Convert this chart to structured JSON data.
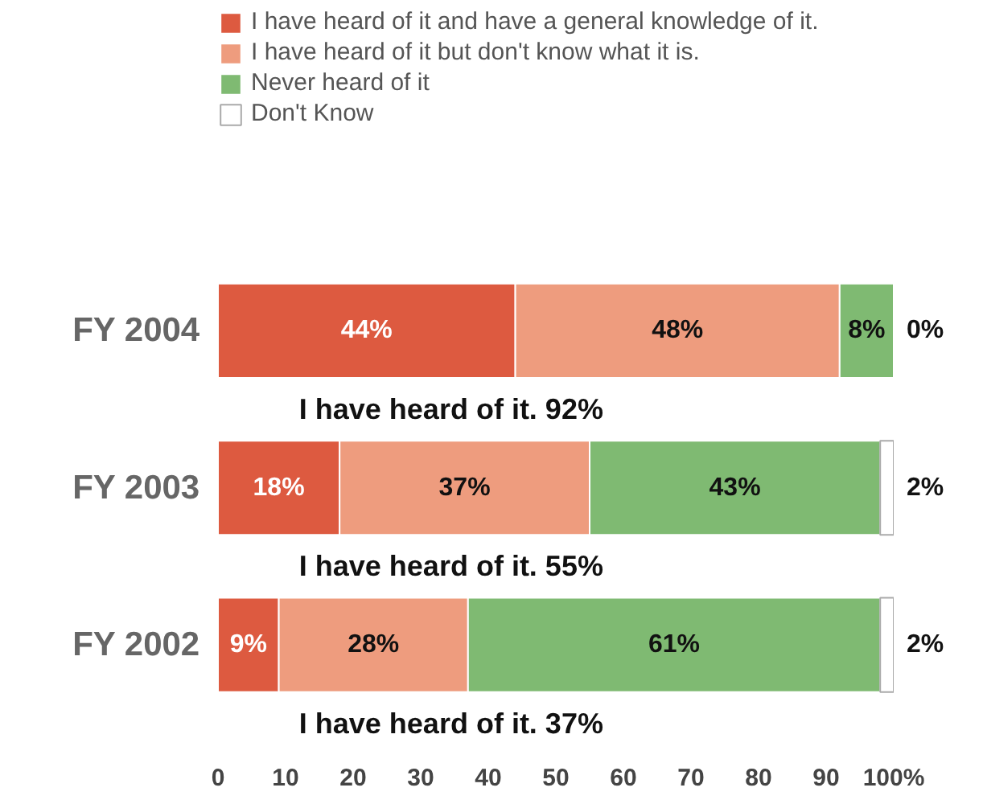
{
  "chart_data": {
    "type": "bar",
    "orientation": "horizontal",
    "stacked": true,
    "categories": [
      "FY 2004",
      "FY 2003",
      "FY 2002"
    ],
    "series": [
      {
        "name": "I have heard of it and have a general knowledge of it.",
        "color": "#dd5a40",
        "values": [
          44,
          18,
          9
        ],
        "value_labels": [
          "44%",
          "18%",
          "9%"
        ]
      },
      {
        "name": "I have heard of it but don't know what it is.",
        "color": "#ee9c7e",
        "values": [
          48,
          37,
          28
        ],
        "value_labels": [
          "48%",
          "37%",
          "28%"
        ]
      },
      {
        "name": "Never heard of it",
        "color": "#7fba72",
        "values": [
          8,
          43,
          61
        ],
        "value_labels": [
          "8%",
          "43%",
          "61%"
        ]
      },
      {
        "name": "Don't Know",
        "color": "#ffffff",
        "values": [
          0,
          2,
          2
        ],
        "value_labels": [
          "0%",
          "2%",
          "2%"
        ]
      }
    ],
    "xlim": [
      0,
      100
    ],
    "xticks": [
      0,
      10,
      20,
      30,
      40,
      50,
      60,
      70,
      80,
      90,
      {
        "value": 100,
        "label": "100%"
      }
    ],
    "annotations": [
      "I have heard of it. 92%",
      "I have heard of it. 55%",
      "I have heard of it. 37%"
    ],
    "legend": "top left",
    "grid": false
  }
}
